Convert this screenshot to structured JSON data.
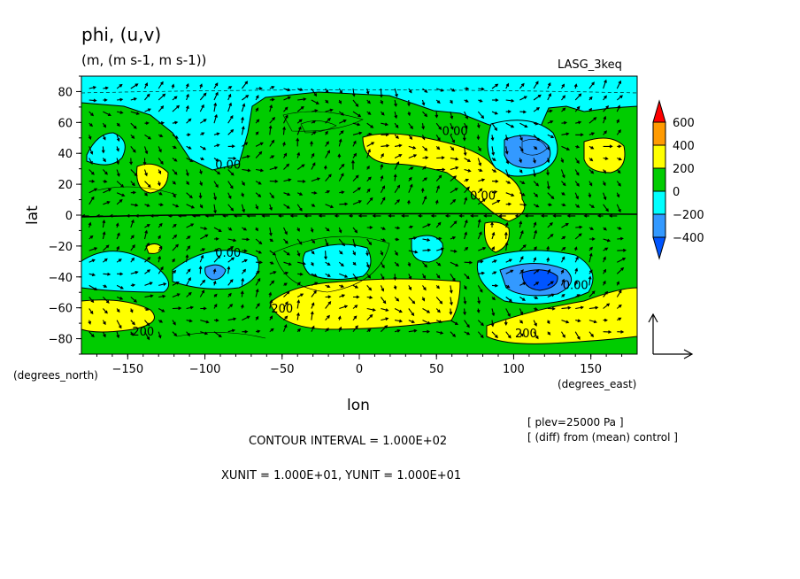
{
  "title": "phi, (u,v)",
  "units": "(m, (m s-1, m s-1))",
  "dataset": "LASG_3keq",
  "chart_data": {
    "type": "heatmap",
    "title": "phi, (u,v)",
    "xlabel": "lon",
    "ylabel": "lat",
    "x_unit_label": "(degrees_east)",
    "y_unit_label": "(degrees_north)",
    "xlim": [
      -180,
      180
    ],
    "ylim": [
      -90,
      90
    ],
    "x_ticks": [
      -150,
      -100,
      -50,
      0,
      50,
      100,
      150
    ],
    "y_ticks": [
      80,
      60,
      40,
      20,
      0,
      -20,
      -40,
      -60,
      -80
    ],
    "colorbar": {
      "levels": [
        600,
        400,
        200,
        0,
        -200,
        -400
      ],
      "labels": [
        "600",
        "400",
        "200",
        "0",
        "−200",
        "−400"
      ],
      "colors": [
        "#ff0000",
        "#ff9a00",
        "#ffff00",
        "#00cc00",
        "#00ffff",
        "#3399ff",
        "#0055ff"
      ]
    },
    "contour_labels": [
      {
        "text": "0.00",
        "lon": 62,
        "lat": 52
      },
      {
        "text": "0.00",
        "lon": -85,
        "lat": 30
      },
      {
        "text": "0.00",
        "lon": -85,
        "lat": -27
      },
      {
        "text": "0.00",
        "lon": 80,
        "lat": 10
      },
      {
        "text": "0.00",
        "lon": 140,
        "lat": -48
      },
      {
        "text": "200",
        "lon": -50,
        "lat": -63
      },
      {
        "text": "200",
        "lon": -140,
        "lat": -78
      },
      {
        "text": "200",
        "lon": 108,
        "lat": -79
      }
    ],
    "vector_reference": {
      "x_unit": "1.000E+01",
      "y_unit": "1.000E+01"
    },
    "contour_interval": "1.000E+02"
  },
  "annotations": {
    "contour_interval_label": "CONTOUR INTERVAL = 1.000E+02",
    "unit_label": "XUNIT = 1.000E+01, YUNIT = 1.000E+01",
    "plev_label": "[ plev=25000 Pa ]",
    "diff_label": "[ (diff) from (mean) control ]"
  }
}
